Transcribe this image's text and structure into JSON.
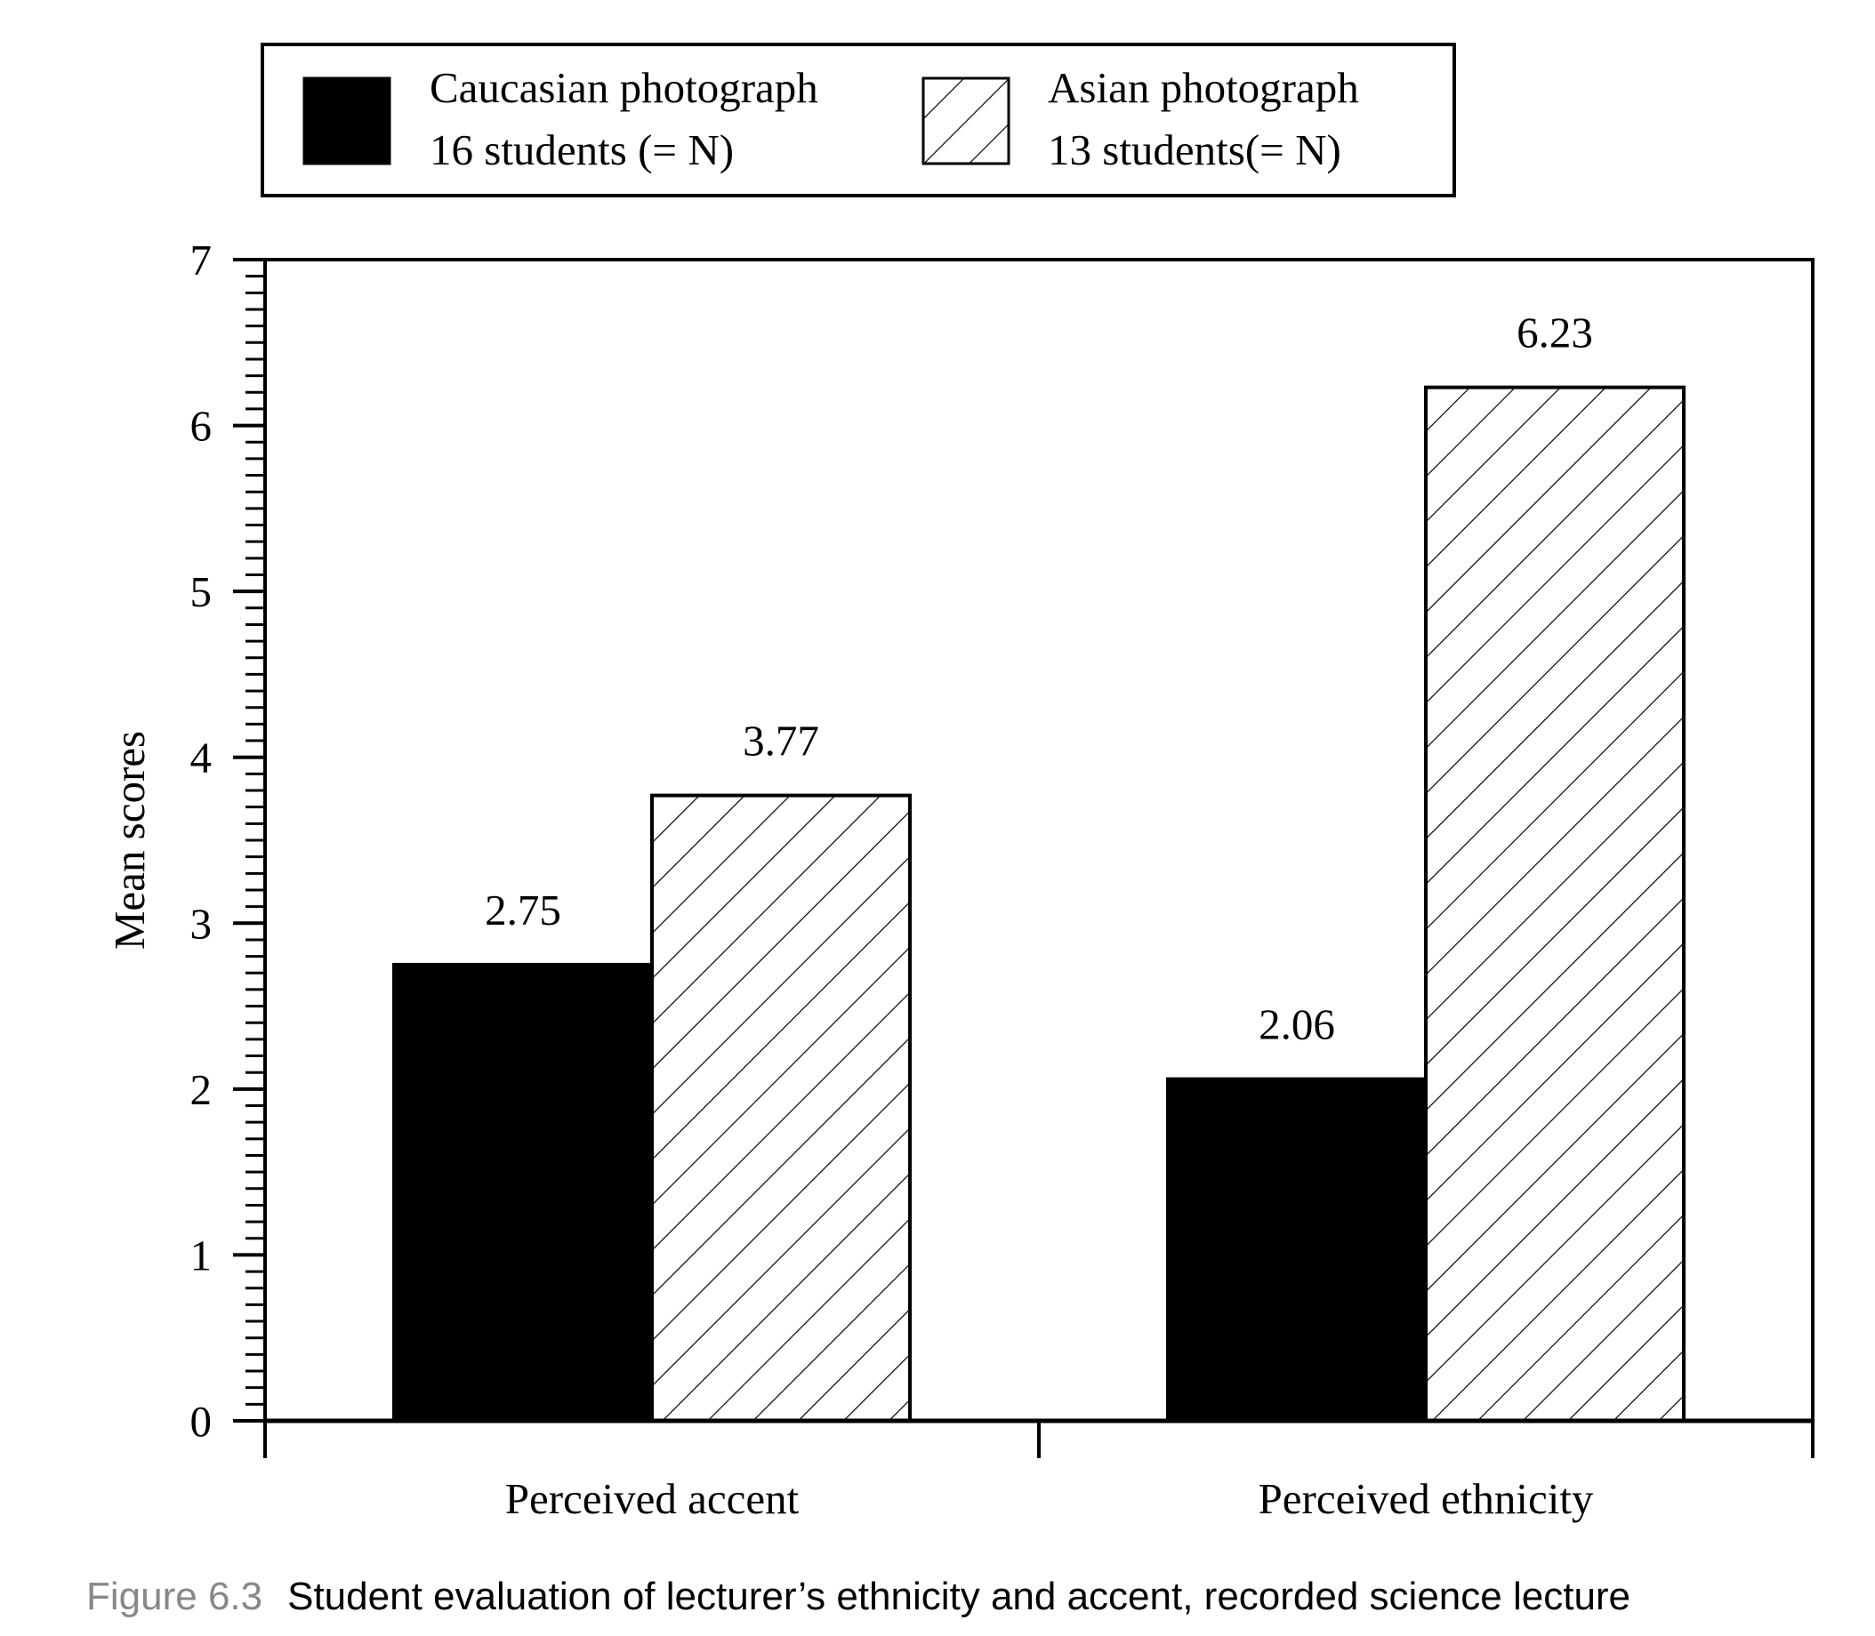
{
  "chart_data": {
    "type": "bar",
    "categories": [
      "Perceived accent",
      "Perceived ethnicity"
    ],
    "series": [
      {
        "name": "Caucasian photograph",
        "subtitle": "16 students (= N)",
        "fill": "solid",
        "color": "#000000",
        "values": [
          2.75,
          2.06
        ],
        "labels": [
          "2.75",
          "2.06"
        ]
      },
      {
        "name": "Asian photograph",
        "subtitle": "13 students(= N)",
        "fill": "hatched",
        "color": "#ffffff",
        "values": [
          3.77,
          6.23
        ],
        "labels": [
          "3.77",
          "6.23"
        ]
      }
    ],
    "xlabel": "",
    "ylabel": "Mean scores",
    "ylim": [
      0,
      7
    ],
    "yticks": [
      "0",
      "1",
      "2",
      "3",
      "4",
      "5",
      "6",
      "7"
    ],
    "grid": false,
    "legend_position": "top"
  },
  "caption": {
    "label": "Figure 6.3",
    "text": "Student evaluation of lecturer’s ethnicity and accent, recorded science lecture"
  }
}
